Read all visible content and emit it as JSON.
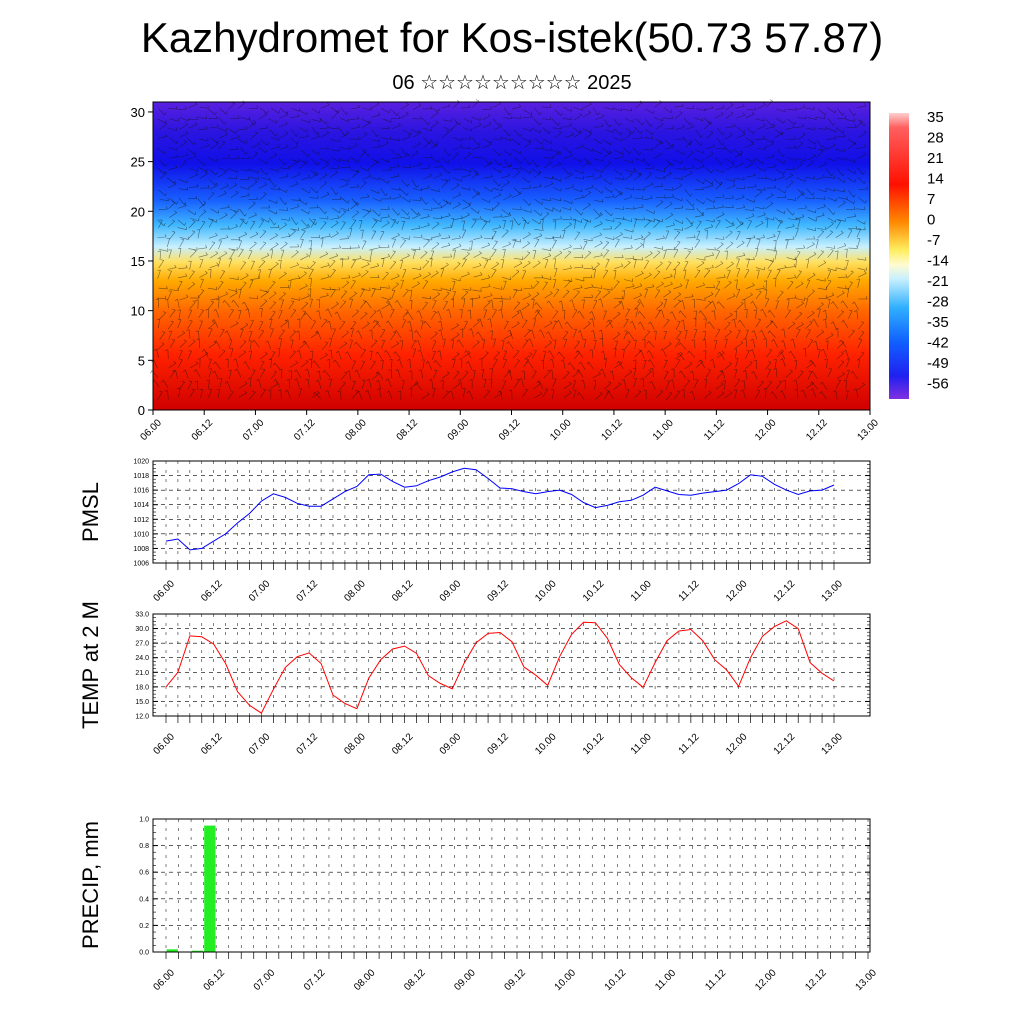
{
  "title": "Kazhydromet for Kos-istek(50.73 57.87)",
  "subtitle": "06 ☆☆☆☆☆☆☆☆☆ 2025",
  "time_labels": [
    "06.00",
    "06.12",
    "07.00",
    "07.12",
    "08.00",
    "08.12",
    "09.00",
    "09.12",
    "10.00",
    "10.12",
    "11.00",
    "11.12",
    "12.00",
    "12.12",
    "13.00"
  ],
  "chart_data": [
    {
      "type": "heatmap",
      "title": "",
      "ylim": [
        0,
        31
      ],
      "yticks": [
        "0",
        "5",
        "10",
        "15",
        "20",
        "25",
        "30"
      ],
      "colorbar_labels": [
        "35",
        "28",
        "21",
        "14",
        "7",
        "0",
        "-7",
        "-14",
        "-21",
        "-28",
        "-35",
        "-42",
        "-49",
        "-56"
      ],
      "colors": {
        "warm": "#ff2a00",
        "neutral": "#fff060",
        "cold": "#2020f0"
      },
      "overlay": "wind barbs"
    },
    {
      "type": "line",
      "ylabel": "PMSL",
      "ylim": [
        1006,
        1020
      ],
      "yticks": [
        "1006",
        "1008",
        "1010",
        "1012",
        "1014",
        "1016",
        "1018",
        "1020"
      ],
      "color": "#0000ff",
      "values": [
        1009.0,
        1009.3,
        1007.8,
        1008.0,
        1009.0,
        1010.0,
        1011.5,
        1012.8,
        1014.5,
        1015.5,
        1015.0,
        1014.2,
        1013.8,
        1013.8,
        1014.8,
        1015.8,
        1016.5,
        1018.1,
        1018.2,
        1017.2,
        1016.4,
        1016.6,
        1017.3,
        1017.8,
        1018.5,
        1019.0,
        1018.8,
        1017.6,
        1016.3,
        1016.2,
        1015.8,
        1015.5,
        1015.8,
        1016.0,
        1015.4,
        1014.3,
        1013.6,
        1013.9,
        1014.4,
        1014.6,
        1015.3,
        1016.4,
        1015.9,
        1015.4,
        1015.3,
        1015.6,
        1015.8,
        1016.0,
        1016.9,
        1018.1,
        1017.9,
        1016.8,
        1016.0,
        1015.4,
        1015.9,
        1016.0,
        1016.7
      ]
    },
    {
      "type": "line",
      "ylabel": "TEMP at 2 M",
      "ylim": [
        12,
        33
      ],
      "yticks": [
        "12.0",
        "15.0",
        "18.0",
        "21.0",
        "24.0",
        "27.0",
        "30.0",
        "33.0"
      ],
      "color": "#ff0000",
      "values": [
        18.0,
        21.0,
        28.5,
        28.3,
        26.8,
        22.8,
        17.0,
        14.2,
        12.6,
        17.5,
        22.0,
        24.2,
        25.0,
        22.8,
        16.3,
        14.6,
        13.5,
        19.8,
        23.6,
        25.8,
        26.4,
        24.9,
        20.3,
        18.7,
        17.6,
        22.9,
        27.1,
        29.0,
        29.2,
        27.3,
        22.1,
        20.4,
        18.3,
        24.2,
        28.8,
        31.3,
        31.2,
        28.0,
        22.6,
        19.9,
        17.9,
        23.0,
        27.5,
        29.5,
        29.8,
        27.5,
        23.6,
        21.5,
        18.1,
        24.0,
        28.4,
        30.4,
        31.6,
        30.0,
        23.0,
        20.8,
        19.2
      ]
    },
    {
      "type": "bar",
      "ylabel": "PRECIP, mm",
      "ylim": [
        0,
        1.0
      ],
      "yticks": [
        "0.0",
        "0.2",
        "0.4",
        "0.6",
        "0.8",
        "1.0"
      ],
      "color": "#22ee22",
      "values": [
        0.02,
        0.0,
        0.01,
        0.95,
        0.0,
        0.0,
        0.0,
        0.0,
        0.0,
        0.0,
        0.0,
        0.0,
        0.0,
        0.0,
        0.0,
        0.0,
        0.0,
        0.0,
        0.0,
        0.0,
        0.0,
        0.0,
        0.0,
        0.0,
        0.0,
        0.0,
        0.0,
        0.0,
        0.0,
        0.0,
        0.0,
        0.0,
        0.0,
        0.0,
        0.0,
        0.0,
        0.0,
        0.0,
        0.0,
        0.0,
        0.0,
        0.0,
        0.0,
        0.0,
        0.0,
        0.0,
        0.0,
        0.0,
        0.0,
        0.0,
        0.0,
        0.0,
        0.0,
        0.0,
        0.0,
        0.0,
        0.0
      ]
    }
  ]
}
